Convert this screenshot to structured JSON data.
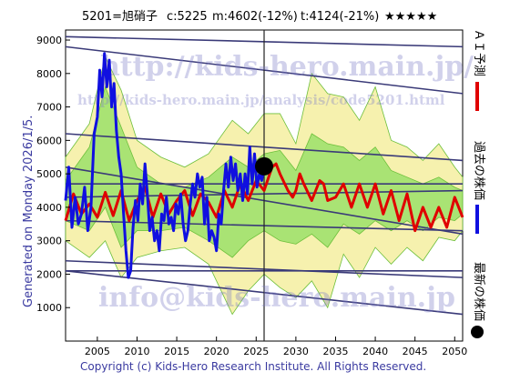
{
  "header": {
    "code_name": "5201=旭硝子",
    "current": "c:5225",
    "mid": "m:4602(-12%)",
    "target": "t:4124(-21%)",
    "stars": "★★★★★"
  },
  "side_text": {
    "generated": "Generated on Monday 2026/1/5."
  },
  "footer": {
    "copyright": "Copyright (c) Kids-Hero Research Institute. All Rights Reserved."
  },
  "watermark": {
    "site": "http://kids-hero.main.jp/",
    "analysis_url": "http://kids-hero.main.jp/analysis/code5201.html",
    "email": "info@kids-hero.main.jp"
  },
  "legend": {
    "ai_forecast": "ＡＩ予測",
    "past_price": "過去の株価",
    "latest_price": "最新の株価"
  },
  "colors": {
    "past": "#1010e0",
    "forecast": "#e00000",
    "band_green": "#9be06a",
    "band_yellow": "#f4efa0",
    "trend": "#3a3a78",
    "latest": "#000000"
  },
  "chart_data": {
    "type": "line",
    "xlim": [
      2001,
      2051
    ],
    "ylim": [
      0,
      9300
    ],
    "x_ticks": [
      2005,
      2010,
      2015,
      2020,
      2025,
      2030,
      2035,
      2040,
      2045,
      2050
    ],
    "y_ticks": [
      1000,
      2000,
      3000,
      4000,
      5000,
      6000,
      7000,
      8000,
      9000
    ],
    "grid": "horizontal at 4000 and vertical at 2026",
    "latest_point": {
      "x": 2026.0,
      "y": 5225
    },
    "past_prices": [
      [
        2001.0,
        4200
      ],
      [
        2001.4,
        5200
      ],
      [
        2001.8,
        3400
      ],
      [
        2002.2,
        4300
      ],
      [
        2002.6,
        3500
      ],
      [
        2003.0,
        3800
      ],
      [
        2003.4,
        4600
      ],
      [
        2003.8,
        3300
      ],
      [
        2004.2,
        4000
      ],
      [
        2004.6,
        6200
      ],
      [
        2005.0,
        6700
      ],
      [
        2005.3,
        8100
      ],
      [
        2005.6,
        7300
      ],
      [
        2005.9,
        8600
      ],
      [
        2006.2,
        7600
      ],
      [
        2006.5,
        8400
      ],
      [
        2006.8,
        7000
      ],
      [
        2007.1,
        7700
      ],
      [
        2007.4,
        6300
      ],
      [
        2007.7,
        5500
      ],
      [
        2008.0,
        5000
      ],
      [
        2008.3,
        3800
      ],
      [
        2008.6,
        2700
      ],
      [
        2008.9,
        1900
      ],
      [
        2009.2,
        2100
      ],
      [
        2009.5,
        3400
      ],
      [
        2009.8,
        4200
      ],
      [
        2010.1,
        3600
      ],
      [
        2010.4,
        4700
      ],
      [
        2010.7,
        4100
      ],
      [
        2011.0,
        5300
      ],
      [
        2011.3,
        4400
      ],
      [
        2011.6,
        3300
      ],
      [
        2011.9,
        3700
      ],
      [
        2012.2,
        3000
      ],
      [
        2012.5,
        3300
      ],
      [
        2012.8,
        2700
      ],
      [
        2013.1,
        3800
      ],
      [
        2013.4,
        3600
      ],
      [
        2013.7,
        4300
      ],
      [
        2014.0,
        3500
      ],
      [
        2014.3,
        3700
      ],
      [
        2014.6,
        3300
      ],
      [
        2014.9,
        4100
      ],
      [
        2015.2,
        3800
      ],
      [
        2015.5,
        4400
      ],
      [
        2015.8,
        3500
      ],
      [
        2016.1,
        3000
      ],
      [
        2016.4,
        3300
      ],
      [
        2016.7,
        4100
      ],
      [
        2017.0,
        4700
      ],
      [
        2017.3,
        4300
      ],
      [
        2017.6,
        5000
      ],
      [
        2017.9,
        4600
      ],
      [
        2018.2,
        4900
      ],
      [
        2018.5,
        3500
      ],
      [
        2018.8,
        4300
      ],
      [
        2019.1,
        3000
      ],
      [
        2019.4,
        3300
      ],
      [
        2019.7,
        3100
      ],
      [
        2020.0,
        2700
      ],
      [
        2020.3,
        3800
      ],
      [
        2020.6,
        3500
      ],
      [
        2020.9,
        4500
      ],
      [
        2021.2,
        5300
      ],
      [
        2021.5,
        4600
      ],
      [
        2021.8,
        5500
      ],
      [
        2022.1,
        4800
      ],
      [
        2022.4,
        5300
      ],
      [
        2022.7,
        4500
      ],
      [
        2023.0,
        5000
      ],
      [
        2023.3,
        4200
      ],
      [
        2023.6,
        5000
      ],
      [
        2023.9,
        4400
      ],
      [
        2024.2,
        5800
      ],
      [
        2024.5,
        4700
      ],
      [
        2024.8,
        5600
      ],
      [
        2025.1,
        4600
      ],
      [
        2025.4,
        5000
      ],
      [
        2025.7,
        4800
      ],
      [
        2026.0,
        5225
      ]
    ],
    "ai_forecast": [
      [
        2001.0,
        3600
      ],
      [
        2002.0,
        4400
      ],
      [
        2003.0,
        3800
      ],
      [
        2004.0,
        4100
      ],
      [
        2005.0,
        3700
      ],
      [
        2006.0,
        4450
      ],
      [
        2007.0,
        3750
      ],
      [
        2008.0,
        4500
      ],
      [
        2009.0,
        3600
      ],
      [
        2010.0,
        4200
      ],
      [
        2011.0,
        4600
      ],
      [
        2012.0,
        3700
      ],
      [
        2013.0,
        4400
      ],
      [
        2014.0,
        3800
      ],
      [
        2015.0,
        4200
      ],
      [
        2016.0,
        4500
      ],
      [
        2017.0,
        3750
      ],
      [
        2018.0,
        4400
      ],
      [
        2019.0,
        4150
      ],
      [
        2020.0,
        3700
      ],
      [
        2021.0,
        4500
      ],
      [
        2022.0,
        4000
      ],
      [
        2023.0,
        4700
      ],
      [
        2024.0,
        4200
      ],
      [
        2025.0,
        4800
      ],
      [
        2026.0,
        4500
      ],
      [
        2027.0,
        5200
      ],
      [
        2027.5,
        5300
      ],
      [
        2028.0,
        5000
      ],
      [
        2029.0,
        4500
      ],
      [
        2029.6,
        4300
      ],
      [
        2030.0,
        4500
      ],
      [
        2030.5,
        5000
      ],
      [
        2031.0,
        4700
      ],
      [
        2032.0,
        4200
      ],
      [
        2033.0,
        4800
      ],
      [
        2033.5,
        4700
      ],
      [
        2034.0,
        4200
      ],
      [
        2035.0,
        4300
      ],
      [
        2036.0,
        4700
      ],
      [
        2037.0,
        4000
      ],
      [
        2038.0,
        4700
      ],
      [
        2039.0,
        4000
      ],
      [
        2040.0,
        4700
      ],
      [
        2041.0,
        3800
      ],
      [
        2042.0,
        4500
      ],
      [
        2043.0,
        3600
      ],
      [
        2044.0,
        4400
      ],
      [
        2045.0,
        3300
      ],
      [
        2046.0,
        4000
      ],
      [
        2047.0,
        3400
      ],
      [
        2048.0,
        4000
      ],
      [
        2049.0,
        3400
      ],
      [
        2050.0,
        4300
      ],
      [
        2051.0,
        3700
      ]
    ],
    "band_outer": [
      [
        2001,
        3000,
        5500
      ],
      [
        2004,
        2500,
        6500
      ],
      [
        2006,
        3000,
        8500
      ],
      [
        2008,
        1900,
        7500
      ],
      [
        2010,
        2500,
        6000
      ],
      [
        2013,
        2700,
        5500
      ],
      [
        2016,
        2800,
        5200
      ],
      [
        2019,
        2300,
        5600
      ],
      [
        2022,
        800,
        6600
      ],
      [
        2024,
        1500,
        6200
      ],
      [
        2026,
        2000,
        6800
      ],
      [
        2028,
        1600,
        6800
      ],
      [
        2030,
        1300,
        5900
      ],
      [
        2032,
        1800,
        8000
      ],
      [
        2034,
        1000,
        7400
      ],
      [
        2036,
        2600,
        7300
      ],
      [
        2038,
        1900,
        6600
      ],
      [
        2040,
        2800,
        7600
      ],
      [
        2042,
        2300,
        6000
      ],
      [
        2044,
        2800,
        5800
      ],
      [
        2046,
        2400,
        5400
      ],
      [
        2048,
        3100,
        5900
      ],
      [
        2050,
        3000,
        5200
      ],
      [
        2051,
        3300,
        4900
      ]
    ],
    "band_inner": [
      [
        2001,
        3600,
        4800
      ],
      [
        2004,
        3300,
        5800
      ],
      [
        2006,
        4000,
        7600
      ],
      [
        2008,
        2800,
        6400
      ],
      [
        2010,
        3300,
        5200
      ],
      [
        2013,
        3300,
        4700
      ],
      [
        2016,
        3400,
        4600
      ],
      [
        2019,
        3000,
        4900
      ],
      [
        2022,
        2500,
        5500
      ],
      [
        2024,
        3000,
        5200
      ],
      [
        2026,
        3300,
        5600
      ],
      [
        2028,
        3000,
        5700
      ],
      [
        2030,
        2900,
        5100
      ],
      [
        2032,
        3200,
        6200
      ],
      [
        2034,
        2800,
        5900
      ],
      [
        2036,
        3500,
        5800
      ],
      [
        2038,
        3200,
        5400
      ],
      [
        2040,
        3600,
        5800
      ],
      [
        2042,
        3300,
        5100
      ],
      [
        2044,
        3600,
        4900
      ],
      [
        2046,
        3300,
        4700
      ],
      [
        2048,
        3700,
        4900
      ],
      [
        2050,
        3600,
        4600
      ],
      [
        2051,
        3800,
        4500
      ]
    ],
    "trend_lines": [
      [
        [
          2001,
          9100
        ],
        [
          2051,
          8800
        ]
      ],
      [
        [
          2001,
          8800
        ],
        [
          2051,
          7400
        ]
      ],
      [
        [
          2001,
          6200
        ],
        [
          2051,
          5400
        ]
      ],
      [
        [
          2001,
          5200
        ],
        [
          2051,
          3200
        ]
      ],
      [
        [
          2001,
          4300
        ],
        [
          2051,
          4500
        ]
      ],
      [
        [
          2001,
          4700
        ],
        [
          2051,
          4700
        ]
      ],
      [
        [
          2001,
          3600
        ],
        [
          2051,
          3300
        ]
      ],
      [
        [
          2001,
          2400
        ],
        [
          2051,
          1900
        ]
      ],
      [
        [
          2001,
          2100
        ],
        [
          2051,
          2100
        ]
      ],
      [
        [
          2001,
          2100
        ],
        [
          2051,
          800
        ]
      ]
    ]
  }
}
